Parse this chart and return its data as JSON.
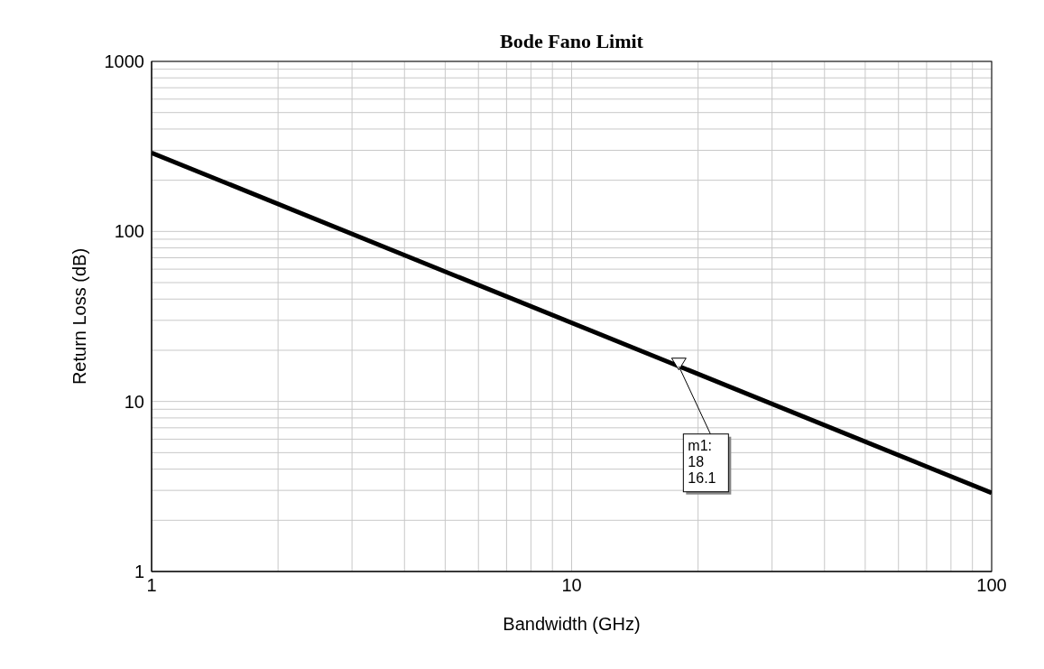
{
  "chart_data": {
    "type": "line",
    "title": "Bode Fano Limit",
    "xlabel": "Bandwidth (GHz)",
    "ylabel": "Return Loss (dB)",
    "x": [
      1,
      100
    ],
    "series": [
      {
        "color": "#000000",
        "values": [
          290,
          2.9
        ]
      }
    ],
    "log": "xy",
    "grid": true,
    "marker": "none",
    "line_style": "solid",
    "xlim": [
      1,
      100
    ],
    "xticks": [
      1,
      {
        "value": 2,
        "label": null
      },
      {
        "value": 3,
        "label": null
      },
      {
        "value": 4,
        "label": null
      },
      {
        "value": 5,
        "label": null
      },
      {
        "value": 6,
        "label": null
      },
      {
        "value": 7,
        "label": null
      },
      {
        "value": 8,
        "label": null
      },
      {
        "value": 9,
        "label": null
      },
      10,
      {
        "value": 20,
        "label": null
      },
      {
        "value": 30,
        "label": null
      },
      {
        "value": 40,
        "label": null
      },
      {
        "value": 50,
        "label": null
      },
      {
        "value": 60,
        "label": null
      },
      {
        "value": 70,
        "label": null
      },
      {
        "value": 80,
        "label": null
      },
      {
        "value": 90,
        "label": null
      },
      100
    ],
    "ylim": [
      1,
      1000
    ],
    "yticks": [
      1,
      {
        "value": 2,
        "label": null
      },
      {
        "value": 3,
        "label": null
      },
      {
        "value": 4,
        "label": null
      },
      {
        "value": 5,
        "label": null
      },
      {
        "value": 6,
        "label": null
      },
      {
        "value": 7,
        "label": null
      },
      {
        "value": 8,
        "label": null
      },
      {
        "value": 9,
        "label": null
      },
      10,
      {
        "value": 20,
        "label": null
      },
      {
        "value": 30,
        "label": null
      },
      {
        "value": 40,
        "label": null
      },
      {
        "value": 50,
        "label": null
      },
      {
        "value": 60,
        "label": null
      },
      {
        "value": 70,
        "label": null
      },
      {
        "value": 80,
        "label": null
      },
      {
        "value": 90,
        "label": null
      },
      100,
      {
        "value": 200,
        "label": null
      },
      {
        "value": 300,
        "label": null
      },
      {
        "value": 400,
        "label": null
      },
      {
        "value": 500,
        "label": null
      },
      {
        "value": 600,
        "label": null
      },
      {
        "value": 700,
        "label": null
      },
      {
        "value": 800,
        "label": null
      },
      {
        "value": 900,
        "label": null
      },
      1000
    ],
    "annotations": [
      {
        "text": "m1:\n18\n16.1",
        "x": 18,
        "y": 16.1
      }
    ]
  }
}
